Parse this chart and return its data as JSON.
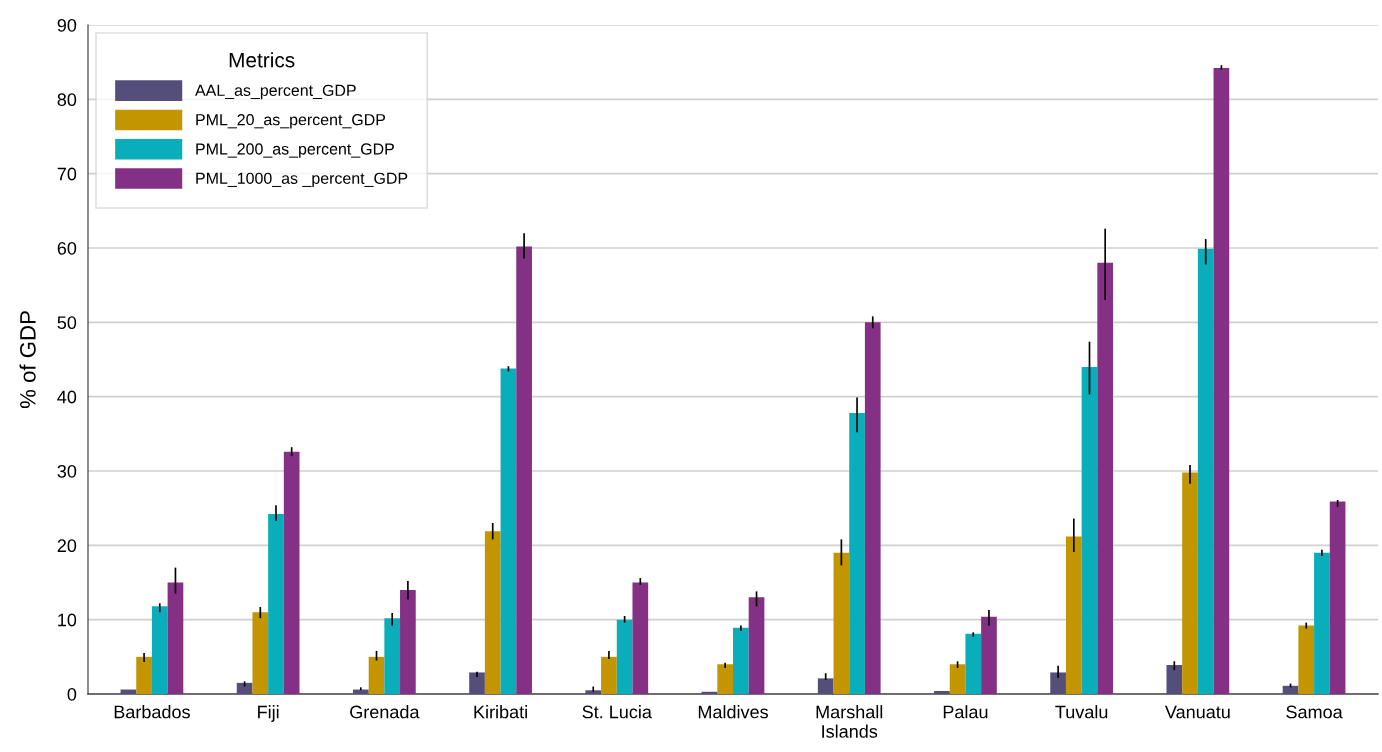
{
  "chart_data": {
    "type": "bar",
    "ylabel": "% of GDP",
    "legend_title": "Metrics",
    "legend": "top left",
    "grid": "y",
    "categories": [
      "Barbados",
      "Fiji",
      "Grenada",
      "Kiribati",
      "St. Lucia",
      "Maldives",
      "Marshall\nIslands",
      "Palau",
      "Tuvalu",
      "Vanuatu",
      "Samoa"
    ],
    "ylim": [
      0,
      90
    ],
    "yticks": [
      0,
      10,
      20,
      30,
      40,
      50,
      60,
      70,
      80,
      90
    ],
    "series": [
      {
        "name": "AAL_as_percent_GDP",
        "color": "#544e7b",
        "values": [
          0.6,
          1.5,
          0.6,
          2.9,
          0.5,
          0.3,
          2.1,
          0.4,
          2.9,
          3.9,
          1.1
        ],
        "errors": [
          null,
          [
            1.0,
            1.7
          ],
          [
            0.5,
            0.9
          ],
          [
            2.3,
            3.0
          ],
          [
            0.3,
            1.0
          ],
          null,
          [
            1.9,
            2.8
          ],
          null,
          [
            2.2,
            3.8
          ],
          [
            3.2,
            4.4
          ],
          [
            0.9,
            1.4
          ]
        ]
      },
      {
        "name": "PML_20_as_percent_GDP",
        "color": "#c39500",
        "values": [
          5.0,
          11.0,
          5.0,
          21.9,
          5.0,
          4.0,
          19.0,
          4.0,
          21.2,
          29.8,
          9.2
        ],
        "errors": [
          [
            4.3,
            5.5
          ],
          [
            10.2,
            11.7
          ],
          [
            4.5,
            5.8
          ],
          [
            20.8,
            23.0
          ],
          [
            4.7,
            5.8
          ],
          [
            3.5,
            4.2
          ],
          [
            17.3,
            20.8
          ],
          [
            3.5,
            4.4
          ],
          [
            19.1,
            23.6
          ],
          [
            28.3,
            30.8
          ],
          [
            8.8,
            9.6
          ]
        ]
      },
      {
        "name": "PML_200_as_percent_GDP",
        "color": "#0aaebb",
        "values": [
          11.8,
          24.2,
          10.2,
          43.8,
          10.0,
          8.9,
          37.8,
          8.1,
          44.0,
          59.9,
          19.0
        ],
        "errors": [
          [
            11.0,
            12.2
          ],
          [
            23.3,
            25.4
          ],
          [
            9.2,
            10.9
          ],
          [
            43.4,
            44.1
          ],
          [
            9.6,
            10.5
          ],
          [
            8.5,
            9.2
          ],
          [
            35.2,
            39.9
          ],
          [
            7.7,
            8.3
          ],
          [
            40.3,
            47.4
          ],
          [
            57.8,
            61.2
          ],
          [
            18.6,
            19.4
          ]
        ]
      },
      {
        "name": "PML_1000_as _percent_GDP",
        "color": "#833085",
        "values": [
          15.0,
          32.6,
          14.0,
          60.2,
          15.0,
          13.0,
          50.0,
          10.4,
          58.0,
          84.2,
          25.9
        ],
        "errors": [
          [
            13.5,
            17.0
          ],
          [
            32.0,
            33.2
          ],
          [
            12.7,
            15.2
          ],
          [
            58.6,
            62.0
          ],
          [
            14.7,
            15.6
          ],
          [
            11.8,
            13.8
          ],
          [
            49.2,
            50.8
          ],
          [
            9.2,
            11.3
          ],
          [
            53.0,
            62.6
          ],
          [
            84.0,
            84.6
          ],
          [
            25.2,
            26.1
          ]
        ]
      }
    ]
  }
}
